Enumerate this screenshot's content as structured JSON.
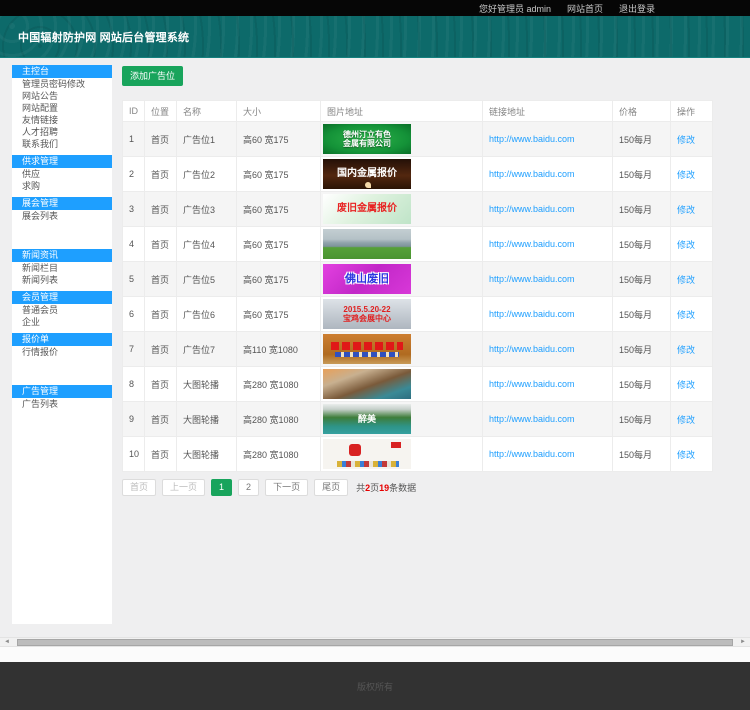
{
  "topbar": {
    "greeting": "您好管理员 admin",
    "site_home": "网站首页",
    "logout": "退出登录"
  },
  "header": {
    "title": "中国辐射防护网 网站后台管理系统"
  },
  "sidebar": {
    "groups": [
      {
        "header": "主控台",
        "items": [
          "管理员密码修改",
          "网站公告",
          "网站配置",
          "友情链接",
          "人才招聘",
          "联系我们"
        ],
        "gap_after": false
      },
      {
        "header": "供求管理",
        "items": [
          "供应",
          "求购"
        ],
        "gap_after": false
      },
      {
        "header": "展会管理",
        "items": [
          "展会列表"
        ],
        "gap_after": true
      },
      {
        "header": "新闻资讯",
        "items": [
          "新闻栏目",
          "新闻列表"
        ],
        "gap_after": false
      },
      {
        "header": "会员管理",
        "items": [
          "普通会员",
          "企业"
        ],
        "gap_after": false
      },
      {
        "header": "报价单",
        "items": [
          "行情报价"
        ],
        "gap_after": true
      },
      {
        "header": "广告管理",
        "items": [
          "广告列表"
        ],
        "gap_after": false
      }
    ]
  },
  "main": {
    "add_button": "添加广告位",
    "table": {
      "headers": [
        "ID",
        "位置",
        "名称",
        "大小",
        "图片地址",
        "链接地址",
        "价格",
        "操作"
      ],
      "rows": [
        {
          "id": "1",
          "position": "首页",
          "name": "广告位1",
          "size": "高60 宽175",
          "banner": {
            "class": "bn1",
            "lines": [
              "德州汀立有色",
              "金属有限公司"
            ]
          },
          "link": "http://www.baidu.com",
          "price": "150每月",
          "action": "修改"
        },
        {
          "id": "2",
          "position": "首页",
          "name": "广告位2",
          "size": "高60 宽175",
          "banner": {
            "class": "bn2",
            "lines": [
              "国内金属报价"
            ]
          },
          "link": "http://www.baidu.com",
          "price": "150每月",
          "action": "修改"
        },
        {
          "id": "3",
          "position": "首页",
          "name": "广告位3",
          "size": "高60 宽175",
          "banner": {
            "class": "bn3",
            "lines": [
              "废旧金属报价"
            ]
          },
          "link": "http://www.baidu.com",
          "price": "150每月",
          "action": "修改"
        },
        {
          "id": "4",
          "position": "首页",
          "name": "广告位4",
          "size": "高60 宽175",
          "banner": {
            "class": "bn4",
            "lines": []
          },
          "link": "http://www.baidu.com",
          "price": "150每月",
          "action": "修改"
        },
        {
          "id": "5",
          "position": "首页",
          "name": "广告位5",
          "size": "高60 宽175",
          "banner": {
            "class": "bn5",
            "lines": [
              "佛山废旧"
            ]
          },
          "link": "http://www.baidu.com",
          "price": "150每月",
          "action": "修改"
        },
        {
          "id": "6",
          "position": "首页",
          "name": "广告位6",
          "size": "高60 宽175",
          "banner": {
            "class": "bn6",
            "lines": [
              "2015.5.20-22",
              "宝鸡会展中心"
            ]
          },
          "link": "http://www.baidu.com",
          "price": "150每月",
          "action": "修改"
        },
        {
          "id": "7",
          "position": "首页",
          "name": "广告位7",
          "size": "高110 宽1080",
          "banner": {
            "class": "bn7",
            "lines": []
          },
          "link": "http://www.baidu.com",
          "price": "150每月",
          "action": "修改"
        },
        {
          "id": "8",
          "position": "首页",
          "name": "大图轮播",
          "size": "高280 宽1080",
          "banner": {
            "class": "bn8",
            "lines": []
          },
          "link": "http://www.baidu.com",
          "price": "150每月",
          "action": "修改"
        },
        {
          "id": "9",
          "position": "首页",
          "name": "大图轮播",
          "size": "高280 宽1080",
          "banner": {
            "class": "bn9",
            "lines": [
              "醉美"
            ]
          },
          "link": "http://www.baidu.com",
          "price": "150每月",
          "action": "修改"
        },
        {
          "id": "10",
          "position": "首页",
          "name": "大图轮播",
          "size": "高280 宽1080",
          "banner": {
            "class": "bn10",
            "lines": []
          },
          "link": "http://www.baidu.com",
          "price": "150每月",
          "action": "修改"
        }
      ]
    },
    "pagination": {
      "first": "首页",
      "prev": "上一页",
      "pages": [
        {
          "label": "1",
          "active": true
        },
        {
          "label": "2",
          "active": false
        }
      ],
      "next": "下一页",
      "last": "尾页",
      "summary": {
        "prefix": "共",
        "total_pages": "2",
        "pages_unit": "页",
        "total_items": "19",
        "items_unit": "条数据"
      }
    }
  },
  "footer": {
    "copyright": "版权所有"
  },
  "colors": {
    "accent_blue": "#1e9fff",
    "accent_green": "#18a45c",
    "header_teal": "#0d6a6a",
    "link_blue": "#1e9fff",
    "highlight_red": "#e60000",
    "footer_dark": "#323232"
  }
}
